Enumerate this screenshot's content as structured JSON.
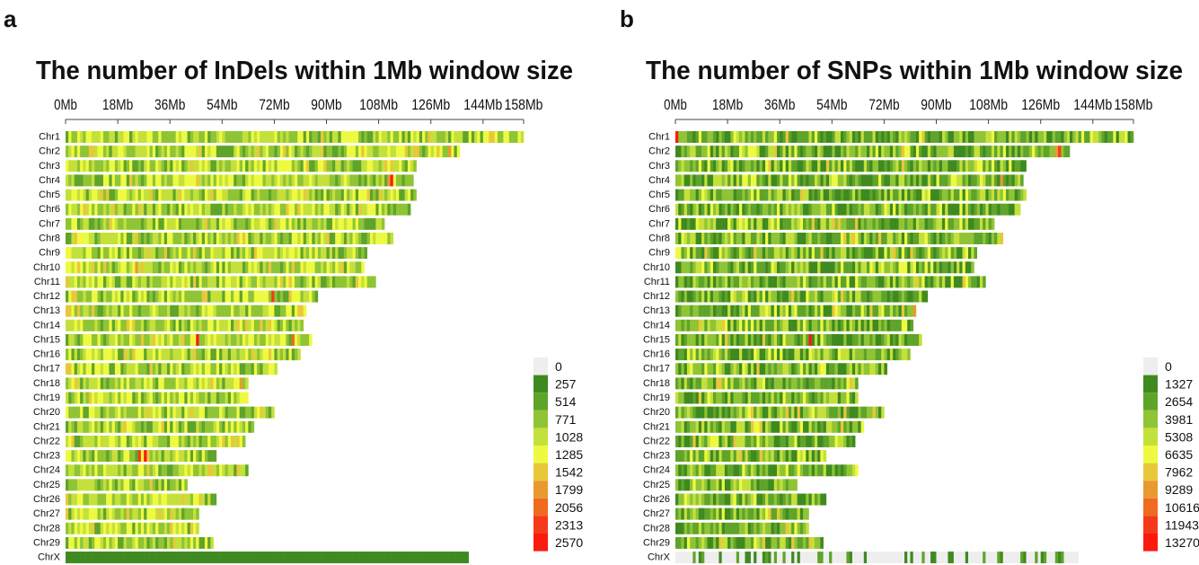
{
  "chart_data": [
    {
      "type": "heatmap",
      "panel_label": "a",
      "title": "The number of InDels within 1Mb window size",
      "x_ticks": [
        "0Mb",
        "18Mb",
        "36Mb",
        "54Mb",
        "72Mb",
        "90Mb",
        "108Mb",
        "126Mb",
        "144Mb",
        "158Mb"
      ],
      "x_tick_values": [
        0,
        18,
        36,
        54,
        72,
        90,
        108,
        126,
        144,
        158
      ],
      "xlim": [
        0,
        158
      ],
      "chromosomes": [
        "Chr1",
        "Chr2",
        "Chr3",
        "Chr4",
        "Chr5",
        "Chr6",
        "Chr7",
        "Chr8",
        "Chr9",
        "Chr10",
        "Chr11",
        "Chr12",
        "Chr13",
        "Chr14",
        "Chr15",
        "Chr16",
        "Chr17",
        "Chr18",
        "Chr19",
        "Chr20",
        "Chr21",
        "Chr22",
        "Chr23",
        "Chr24",
        "Chr25",
        "Chr26",
        "Chr27",
        "Chr28",
        "Chr29",
        "ChrX"
      ],
      "lengths_mb": [
        158,
        136,
        121,
        120,
        121,
        119,
        110,
        113,
        104,
        103,
        107,
        87,
        83,
        82,
        85,
        81,
        73,
        63,
        63,
        72,
        65,
        62,
        52,
        63,
        42,
        52,
        46,
        46,
        51,
        139
      ],
      "legend": {
        "labels": [
          "0",
          "257",
          "514",
          "771",
          "1028",
          "1285",
          "1542",
          "1799",
          "2056",
          "2313",
          "2570"
        ],
        "colors": [
          "#eeeeee",
          "#3f8a1f",
          "#5fa42a",
          "#8fc435",
          "#c4e03a",
          "#eefa40",
          "#e8c83a",
          "#e89a30",
          "#f06a20",
          "#f53a1a",
          "#fa1a10"
        ]
      },
      "hotspots": [
        {
          "chr": "Chr4",
          "mb": 112,
          "value": 2570
        },
        {
          "chr": "Chr4",
          "mb": 111,
          "value": 1799
        },
        {
          "chr": "Chr15",
          "mb": 45,
          "value": 2570
        },
        {
          "chr": "Chr15",
          "mb": 78,
          "value": 2056
        },
        {
          "chr": "Chr12",
          "mb": 71,
          "value": 2313
        },
        {
          "chr": "Chr23",
          "mb": 25,
          "value": 2313
        },
        {
          "chr": "Chr23",
          "mb": 27,
          "value": 2570
        },
        {
          "chr": "Chr2",
          "mb": 132,
          "value": 1799
        },
        {
          "chr": "Chr18",
          "mb": 60,
          "value": 1799
        },
        {
          "chr": "Chr10",
          "mb": 24,
          "value": 1799
        }
      ],
      "chrX_level": 257
    },
    {
      "type": "heatmap",
      "panel_label": "b",
      "title": "The number of SNPs within 1Mb window size",
      "x_ticks": [
        "0Mb",
        "18Mb",
        "36Mb",
        "54Mb",
        "72Mb",
        "90Mb",
        "108Mb",
        "126Mb",
        "144Mb",
        "158Mb"
      ],
      "x_tick_values": [
        0,
        18,
        36,
        54,
        72,
        90,
        108,
        126,
        144,
        158
      ],
      "xlim": [
        0,
        158
      ],
      "chromosomes": [
        "Chr1",
        "Chr2",
        "Chr3",
        "Chr4",
        "Chr5",
        "Chr6",
        "Chr7",
        "Chr8",
        "Chr9",
        "Chr10",
        "Chr11",
        "Chr12",
        "Chr13",
        "Chr14",
        "Chr15",
        "Chr16",
        "Chr17",
        "Chr18",
        "Chr19",
        "Chr20",
        "Chr21",
        "Chr22",
        "Chr23",
        "Chr24",
        "Chr25",
        "Chr26",
        "Chr27",
        "Chr28",
        "Chr29",
        "ChrX"
      ],
      "lengths_mb": [
        158,
        136,
        121,
        120,
        121,
        119,
        110,
        113,
        104,
        103,
        107,
        87,
        83,
        82,
        85,
        81,
        73,
        63,
        63,
        72,
        65,
        62,
        52,
        63,
        42,
        52,
        46,
        46,
        51,
        139
      ],
      "legend": {
        "labels": [
          "0",
          "1327",
          "2654",
          "3981",
          "5308",
          "6635",
          "7962",
          "9289",
          "10616",
          "11943",
          "13270"
        ],
        "colors": [
          "#eeeeee",
          "#3f8a1f",
          "#5fa42a",
          "#8fc435",
          "#c4e03a",
          "#eefa40",
          "#e8c83a",
          "#e89a30",
          "#f06a20",
          "#f53a1a",
          "#fa1a10"
        ]
      },
      "hotspots": [
        {
          "chr": "Chr1",
          "mb": 0,
          "value": 13270
        },
        {
          "chr": "Chr2",
          "mb": 132,
          "value": 11943
        },
        {
          "chr": "Chr2",
          "mb": 131,
          "value": 9289
        },
        {
          "chr": "Chr15",
          "mb": 46,
          "value": 13270
        },
        {
          "chr": "Chr4",
          "mb": 112,
          "value": 9289
        },
        {
          "chr": "Chr13",
          "mb": 82,
          "value": 9289
        }
      ],
      "chrX_level": 0
    }
  ]
}
